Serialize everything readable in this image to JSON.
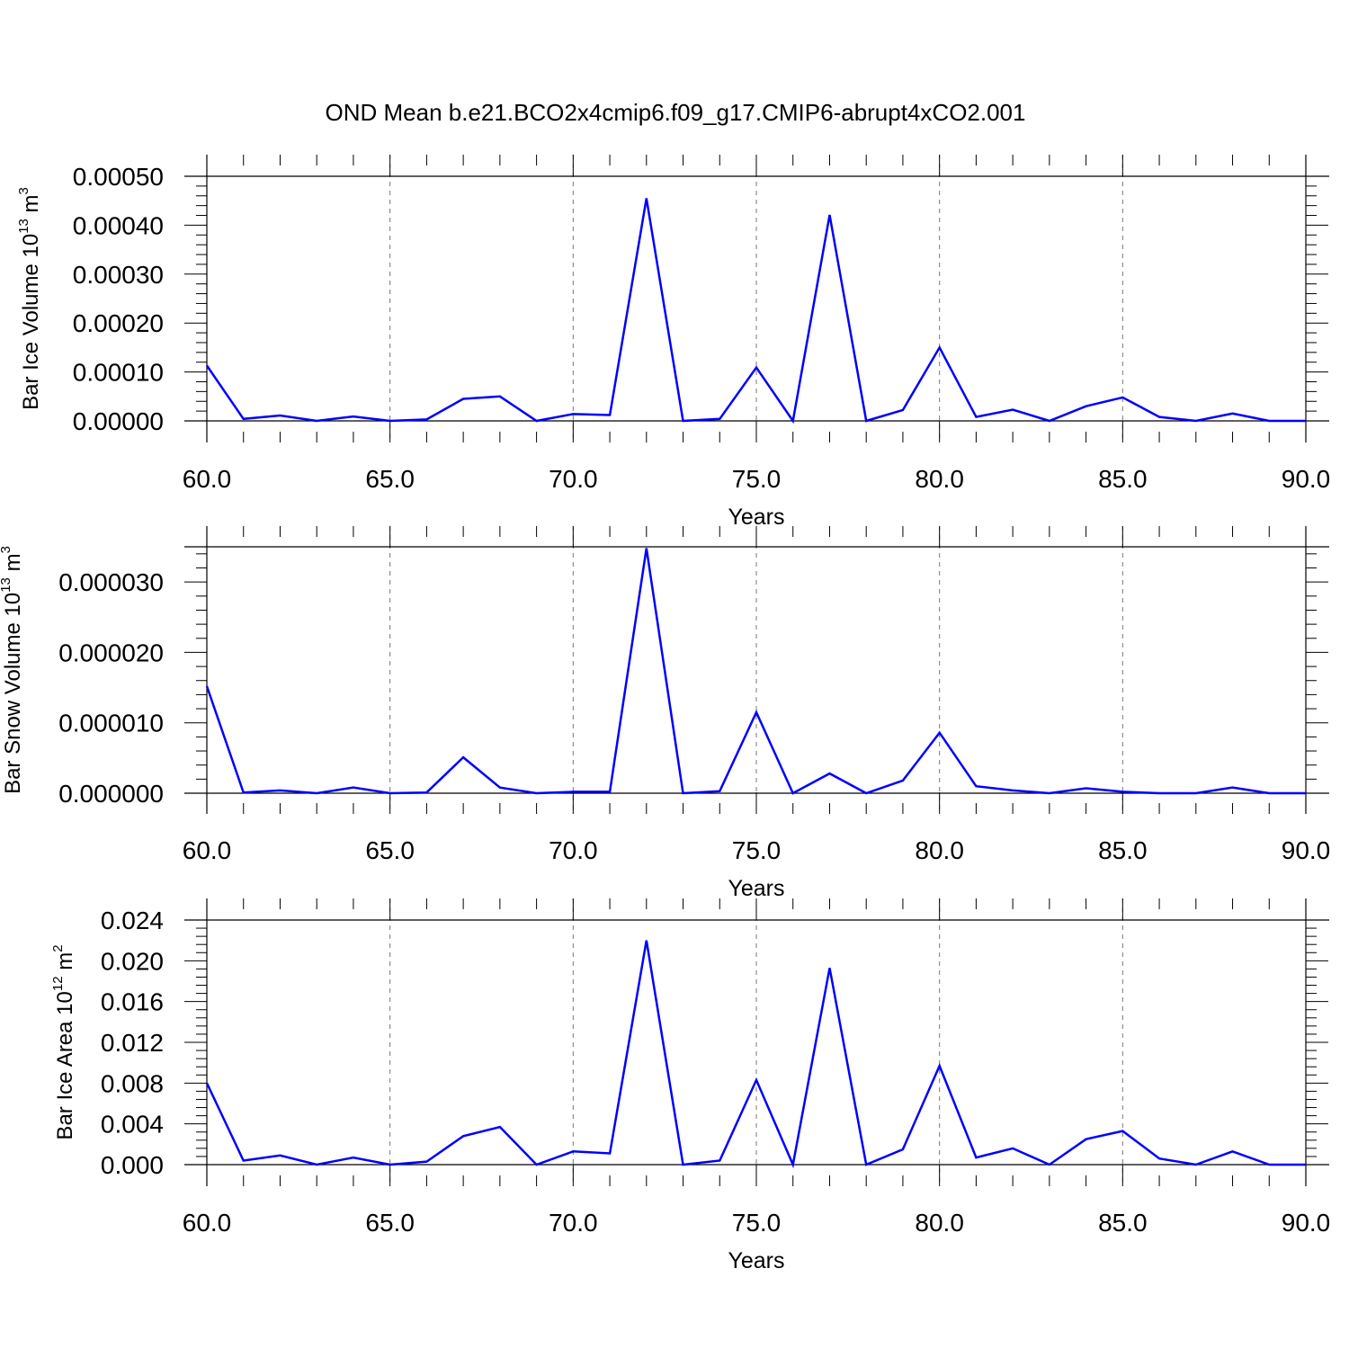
{
  "title": "OND Mean b.e21.BCO2x4cmip6.f09_g17.CMIP6-abrupt4xCO2.001",
  "colors": {
    "series": "#0000ff",
    "axis": "#000000",
    "grid": "#777777"
  },
  "chart_data": [
    {
      "type": "line",
      "ylabel": {
        "main": "Bar Ice Volume 10",
        "sup_mid": "13",
        "unit": " m",
        "sup_end": "3"
      },
      "xlabel": "Years",
      "xlim": [
        60,
        90
      ],
      "ylim": [
        0,
        0.0005
      ],
      "xticks": [
        60,
        65,
        70,
        75,
        80,
        85,
        90
      ],
      "xtick_labels": [
        "60.0",
        "65.0",
        "70.0",
        "75.0",
        "80.0",
        "85.0",
        "90.0"
      ],
      "yticks": [
        0,
        0.0001,
        0.0002,
        0.0003,
        0.0004,
        0.0005
      ],
      "ytick_labels": [
        "0.00000",
        "0.00010",
        "0.00020",
        "0.00030",
        "0.00040",
        "0.00050"
      ],
      "grid_x": true,
      "x": [
        60,
        61,
        62,
        63,
        64,
        65,
        66,
        67,
        68,
        69,
        70,
        71,
        72,
        73,
        74,
        75,
        76,
        77,
        78,
        79,
        80,
        81,
        82,
        83,
        84,
        85,
        86,
        87,
        88,
        89,
        90
      ],
      "values": [
        0.000113,
        4e-06,
        1.1e-05,
        0.0,
        9e-06,
        0.0,
        3e-06,
        4.5e-05,
        5e-05,
        0.0,
        1.4e-05,
        1.2e-05,
        0.000455,
        0.0,
        4e-06,
        0.000109,
        0.0,
        0.000421,
        0.0,
        2.2e-05,
        0.00015,
        8e-06,
        2.3e-05,
        0.0,
        3e-05,
        4.8e-05,
        8e-06,
        0.0,
        1.5e-05,
        0.0,
        0.0
      ]
    },
    {
      "type": "line",
      "ylabel": {
        "main": "Bar Snow Volume 10",
        "sup_mid": "13",
        "unit": " m",
        "sup_end": "3"
      },
      "xlabel": "Years",
      "xlim": [
        60,
        90
      ],
      "ylim": [
        0,
        3.5e-05
      ],
      "xticks": [
        60,
        65,
        70,
        75,
        80,
        85,
        90
      ],
      "xtick_labels": [
        "60.0",
        "65.0",
        "70.0",
        "75.0",
        "80.0",
        "85.0",
        "90.0"
      ],
      "yticks": [
        0,
        1e-05,
        2e-05,
        3e-05
      ],
      "ytick_labels": [
        "0.000000",
        "0.000010",
        "0.000020",
        "0.000030"
      ],
      "grid_x": true,
      "x": [
        60,
        61,
        62,
        63,
        64,
        65,
        66,
        67,
        68,
        69,
        70,
        71,
        72,
        73,
        74,
        75,
        76,
        77,
        78,
        79,
        80,
        81,
        82,
        83,
        84,
        85,
        86,
        87,
        88,
        89,
        90
      ],
      "values": [
        1.52e-05,
        1e-07,
        4e-07,
        0.0,
        8e-07,
        0.0,
        1e-07,
        5.1e-06,
        8e-07,
        0.0,
        2e-07,
        2e-07,
        3.48e-05,
        0.0,
        3e-07,
        1.15e-05,
        0.0,
        2.8e-06,
        0.0,
        1.8e-06,
        8.6e-06,
        1e-06,
        4e-07,
        0.0,
        7e-07,
        2e-07,
        0.0,
        0.0,
        8e-07,
        0.0,
        0.0
      ]
    },
    {
      "type": "line",
      "ylabel": {
        "main": "Bar Ice Area 10",
        "sup_mid": "12",
        "unit": " m",
        "sup_end": "2"
      },
      "xlabel": "Years",
      "xlim": [
        60,
        90
      ],
      "ylim": [
        0,
        0.024
      ],
      "xticks": [
        60,
        65,
        70,
        75,
        80,
        85,
        90
      ],
      "xtick_labels": [
        "60.0",
        "65.0",
        "70.0",
        "75.0",
        "80.0",
        "85.0",
        "90.0"
      ],
      "yticks": [
        0,
        0.004,
        0.008,
        0.012,
        0.016,
        0.02,
        0.024
      ],
      "ytick_labels": [
        "0.000",
        "0.004",
        "0.008",
        "0.012",
        "0.016",
        "0.020",
        "0.024"
      ],
      "grid_x": true,
      "x": [
        60,
        61,
        62,
        63,
        64,
        65,
        66,
        67,
        68,
        69,
        70,
        71,
        72,
        73,
        74,
        75,
        76,
        77,
        78,
        79,
        80,
        81,
        82,
        83,
        84,
        85,
        86,
        87,
        88,
        89,
        90
      ],
      "values": [
        0.008,
        0.0004,
        0.0009,
        0.0,
        0.0007,
        0.0,
        0.0003,
        0.0028,
        0.0037,
        0.0,
        0.0013,
        0.0011,
        0.022,
        0.0,
        0.0004,
        0.0083,
        0.0,
        0.0193,
        0.0,
        0.0015,
        0.0097,
        0.0007,
        0.0016,
        0.0,
        0.0025,
        0.0033,
        0.0006,
        0.0,
        0.0013,
        0.0,
        0.0
      ]
    }
  ]
}
